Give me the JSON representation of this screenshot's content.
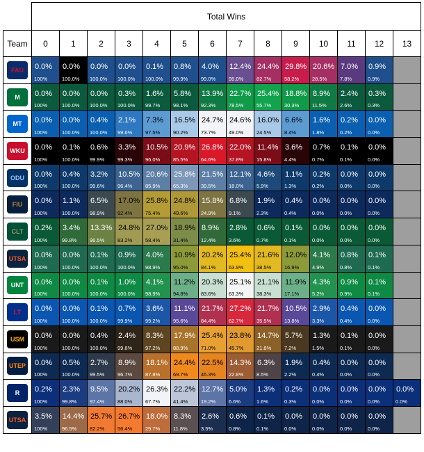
{
  "table": {
    "title": "Total Wins",
    "team_header": "Team",
    "columns": [
      "0",
      "1",
      "2",
      "3",
      "4",
      "5",
      "6",
      "7",
      "8",
      "9",
      "10",
      "11",
      "12",
      "13"
    ]
  },
  "teams": [
    {
      "logo_text": "FAU",
      "logo_bg": "#0b2c6b",
      "logo_fg": "#c8102e",
      "pct": [
        "0.0%",
        "0.0%",
        "0.0%",
        "0.0%",
        "0.1%",
        "0.8%",
        "4.0%",
        "12.4%",
        "24.4%",
        "29.8%",
        "20.6%",
        "7.0%",
        "0.9%"
      ],
      "cum": [
        "100%",
        "100.0%",
        "100.0%",
        "100.0%",
        "100.0%",
        "99.9%",
        "99.0%",
        "95.0%",
        "82.7%",
        "58.2%",
        "28.5%",
        "7.8%",
        "0.9%"
      ],
      "bg": [
        "#1f4f8c",
        "#000000",
        "#1f4f8c",
        "#1f4f8c",
        "#1f4f8c",
        "#1f4f8c",
        "#1f4f8c",
        "#6a4f90",
        "#a52f62",
        "#c81d4c",
        "#a52f62",
        "#5a3a7e",
        "#1f4f8c"
      ],
      "fg": [
        "#fff",
        "#fff",
        "#fff",
        "#fff",
        "#fff",
        "#fff",
        "#fff",
        "#fff",
        "#fff",
        "#fff",
        "#fff",
        "#fff",
        "#fff"
      ]
    },
    {
      "logo_text": "M",
      "logo_bg": "#00703c",
      "logo_fg": "#fff",
      "pct": [
        "0.0%",
        "0.0%",
        "0.0%",
        "0.3%",
        "1.6%",
        "5.8%",
        "13.9%",
        "22.7%",
        "25.4%",
        "18.8%",
        "8.9%",
        "2.4%",
        "0.3%"
      ],
      "cum": [
        "100%",
        "100.0%",
        "100.0%",
        "100.0%",
        "99.7%",
        "98.1%",
        "92.3%",
        "78.5%",
        "55.7%",
        "30.3%",
        "11.5%",
        "2.6%",
        "0.3%"
      ],
      "bg": [
        "#0b5a3e",
        "#0b5a3e",
        "#0b5a3e",
        "#0b5a3e",
        "#0b5a3e",
        "#0b5a3e",
        "#0f7a44",
        "#119a4a",
        "#12a34d",
        "#119a4a",
        "#0f7a44",
        "#0b5a3e",
        "#0b5a3e"
      ],
      "fg": [
        "#fff",
        "#fff",
        "#fff",
        "#fff",
        "#fff",
        "#fff",
        "#fff",
        "#fff",
        "#fff",
        "#fff",
        "#fff",
        "#fff",
        "#fff"
      ]
    },
    {
      "logo_text": "MT",
      "logo_bg": "#0066cc",
      "logo_fg": "#fff",
      "pct": [
        "0.0%",
        "0.0%",
        "0.4%",
        "2.1%",
        "7.3%",
        "16.5%",
        "24.7%",
        "24.6%",
        "16.0%",
        "6.6%",
        "1.6%",
        "0.2%",
        "0.0%"
      ],
      "cum": [
        "100%",
        "100.0%",
        "100.0%",
        "99.6%",
        "97.5%",
        "90.2%",
        "73.7%",
        "49.0%",
        "24.5%",
        "8.4%",
        "1.8%",
        "0.2%",
        "0.0%"
      ],
      "bg": [
        "#0a5fb0",
        "#0a5fb0",
        "#0a5fb0",
        "#2d78c0",
        "#5d9bd3",
        "#a8c9e8",
        "#f2f4f7",
        "#f2f4f7",
        "#a8c9e8",
        "#5d9bd3",
        "#0a5fb0",
        "#0a5fb0",
        "#0a5fb0"
      ],
      "fg": [
        "#fff",
        "#fff",
        "#fff",
        "#fff",
        "#000",
        "#000",
        "#000",
        "#000",
        "#000",
        "#000",
        "#fff",
        "#fff",
        "#fff"
      ]
    },
    {
      "logo_text": "WKU",
      "logo_bg": "#c8102e",
      "logo_fg": "#fff",
      "pct": [
        "0.0%",
        "0.1%",
        "0.6%",
        "3.3%",
        "10.5%",
        "20.9%",
        "26.8%",
        "22.0%",
        "11.4%",
        "3.6%",
        "0.7%",
        "0.1%",
        "0.0%"
      ],
      "cum": [
        "100%",
        "100.0%",
        "99.9%",
        "99.3%",
        "96.0%",
        "85.5%",
        "64.6%",
        "37.8%",
        "15.8%",
        "4.4%",
        "0.7%",
        "0.1%",
        "0.0%"
      ],
      "bg": [
        "#000000",
        "#000000",
        "#000000",
        "#2a0508",
        "#7a0d18",
        "#b51423",
        "#d9192a",
        "#b51423",
        "#7a0d18",
        "#2a0508",
        "#000000",
        "#000000",
        "#000000"
      ],
      "fg": [
        "#fff",
        "#fff",
        "#fff",
        "#fff",
        "#fff",
        "#fff",
        "#fff",
        "#fff",
        "#fff",
        "#fff",
        "#fff",
        "#fff",
        "#fff"
      ]
    },
    {
      "logo_text": "ODU",
      "logo_bg": "#003366",
      "logo_fg": "#a0c4ff",
      "pct": [
        "0.0%",
        "0.4%",
        "3.2%",
        "10.5%",
        "20.6%",
        "25.8%",
        "21.5%",
        "12.1%",
        "4.6%",
        "1.1%",
        "0.2%",
        "0.0%",
        "0.0%"
      ],
      "cum": [
        "100%",
        "100.0%",
        "99.6%",
        "96.4%",
        "85.9%",
        "65.3%",
        "39.5%",
        "18.0%",
        "5.9%",
        "1.3%",
        "0.2%",
        "0.0%",
        "0.0%"
      ],
      "bg": [
        "#0e3a6b",
        "#0e3a6b",
        "#1d4a7a",
        "#3d6490",
        "#5d7fa6",
        "#7c97b8",
        "#5d7fa6",
        "#3d6490",
        "#1d4a7a",
        "#0e3a6b",
        "#0e3a6b",
        "#0e3a6b",
        "#0e3a6b"
      ],
      "fg": [
        "#fff",
        "#fff",
        "#fff",
        "#fff",
        "#fff",
        "#fff",
        "#fff",
        "#fff",
        "#fff",
        "#fff",
        "#fff",
        "#fff",
        "#fff"
      ]
    },
    {
      "logo_text": "FIU",
      "logo_bg": "#081e3f",
      "logo_fg": "#b6862c",
      "pct": [
        "0.0%",
        "1.1%",
        "6.5%",
        "17.0%",
        "25.8%",
        "24.8%",
        "15.8%",
        "6.8%",
        "1.9%",
        "0.4%",
        "0.0%",
        "0.0%",
        "0.0%"
      ],
      "cum": [
        "100%",
        "100.0%",
        "98.9%",
        "92.4%",
        "75.4%",
        "49.6%",
        "24.9%",
        "9.1%",
        "2.3%",
        "0.4%",
        "0.0%",
        "0.0%",
        "0.0%"
      ],
      "bg": [
        "#0c2a5c",
        "#0c2a5c",
        "#3c4a50",
        "#7d7442",
        "#b39c35",
        "#ae9837",
        "#7d7442",
        "#3c4a50",
        "#0c2a5c",
        "#0c2a5c",
        "#0c2a5c",
        "#0c2a5c",
        "#0c2a5c"
      ],
      "fg": [
        "#fff",
        "#fff",
        "#fff",
        "#000",
        "#000",
        "#000",
        "#fff",
        "#fff",
        "#fff",
        "#fff",
        "#fff",
        "#fff",
        "#fff"
      ]
    },
    {
      "logo_text": "CLT",
      "logo_bg": "#005035",
      "logo_fg": "#a49665",
      "pct": [
        "0.2%",
        "3.4%",
        "13.3%",
        "24.8%",
        "27.0%",
        "18.9%",
        "8.9%",
        "2.8%",
        "0.6%",
        "0.1%",
        "0.0%",
        "0.0%",
        "0.0%"
      ],
      "cum": [
        "100%",
        "99.8%",
        "96.5%",
        "83.2%",
        "58.4%",
        "31.4%",
        "12.4%",
        "3.6%",
        "0.7%",
        "0.1%",
        "0.0%",
        "0.0%",
        "0.0%"
      ],
      "bg": [
        "#0b5a36",
        "#2f6a38",
        "#6c8244",
        "#a09a52",
        "#a89f55",
        "#7e8c49",
        "#2f6a38",
        "#0b5a36",
        "#0b5a36",
        "#0b5a36",
        "#0b5a36",
        "#0b5a36",
        "#0b5a36"
      ],
      "fg": [
        "#fff",
        "#fff",
        "#fff",
        "#000",
        "#000",
        "#000",
        "#fff",
        "#fff",
        "#fff",
        "#fff",
        "#fff",
        "#fff",
        "#fff"
      ]
    },
    {
      "logo_text": "UTSA",
      "logo_bg": "#0c2340",
      "logo_fg": "#f15a22",
      "pct": [
        "0.0%",
        "0.0%",
        "0.1%",
        "0.9%",
        "4.0%",
        "10.9%",
        "20.2%",
        "25.4%",
        "21.6%",
        "12.0%",
        "4.1%",
        "0.8%",
        "0.1%"
      ],
      "cum": [
        "100%",
        "100.0%",
        "100.0%",
        "100.0%",
        "98.9%",
        "95.0%",
        "84.1%",
        "63.9%",
        "38.5%",
        "16.9%",
        "4.9%",
        "0.8%",
        "0.1%"
      ],
      "bg": [
        "#1f6b52",
        "#1f6b52",
        "#1f6b52",
        "#1f6b52",
        "#2a7a4c",
        "#8c9a3a",
        "#e3b922",
        "#f2c010",
        "#e3b922",
        "#8c9a3a",
        "#2a7a4c",
        "#1f6b52",
        "#1f6b52"
      ],
      "fg": [
        "#fff",
        "#fff",
        "#fff",
        "#fff",
        "#fff",
        "#000",
        "#000",
        "#000",
        "#000",
        "#000",
        "#fff",
        "#fff",
        "#fff"
      ]
    },
    {
      "logo_text": "UNT",
      "logo_bg": "#00853e",
      "logo_fg": "#fff",
      "pct": [
        "0.0%",
        "0.0%",
        "0.1%",
        "1.0%",
        "4.1%",
        "11.2%",
        "20.3%",
        "25.1%",
        "21.1%",
        "11.9%",
        "4.3%",
        "0.9%",
        "0.1%"
      ],
      "cum": [
        "100%",
        "100.0%",
        "100.0%",
        "100.0%",
        "98.9%",
        "94.8%",
        "83.6%",
        "63.3%",
        "38.3%",
        "17.1%",
        "5.2%",
        "0.9%",
        "0.1%"
      ],
      "bg": [
        "#0e8a44",
        "#0e8a44",
        "#0e8a44",
        "#0e8a44",
        "#22924f",
        "#6cb08a",
        "#c8dfd1",
        "#f2f5f3",
        "#c8dfd1",
        "#6cb08a",
        "#22924f",
        "#0e8a44",
        "#0e8a44"
      ],
      "fg": [
        "#fff",
        "#fff",
        "#fff",
        "#fff",
        "#fff",
        "#000",
        "#000",
        "#000",
        "#000",
        "#000",
        "#fff",
        "#fff",
        "#fff"
      ]
    },
    {
      "logo_text": "LT",
      "logo_bg": "#002f8b",
      "logo_fg": "#e31937",
      "pct": [
        "0.0%",
        "0.0%",
        "0.1%",
        "0.7%",
        "3.6%",
        "11.1%",
        "21.7%",
        "27.2%",
        "21.7%",
        "10.5%",
        "2.9%",
        "0.4%",
        "0.0%"
      ],
      "cum": [
        "100%",
        "100.0%",
        "100.0%",
        "99.9%",
        "99.2%",
        "95.6%",
        "84.4%",
        "62.7%",
        "35.5%",
        "13.8%",
        "3.3%",
        "0.4%",
        "0.0%"
      ],
      "bg": [
        "#0a56b0",
        "#0a56b0",
        "#0a56b0",
        "#0a56b0",
        "#1c56a8",
        "#5a4898",
        "#b03050",
        "#d8283c",
        "#b03050",
        "#5a4898",
        "#1c56a8",
        "#0a56b0",
        "#0a56b0"
      ],
      "fg": [
        "#fff",
        "#fff",
        "#fff",
        "#fff",
        "#fff",
        "#fff",
        "#fff",
        "#fff",
        "#fff",
        "#fff",
        "#fff",
        "#fff",
        "#fff"
      ]
    },
    {
      "logo_text": "USM",
      "logo_bg": "#000000",
      "logo_fg": "#ffab00",
      "pct": [
        "0.0%",
        "0.0%",
        "0.4%",
        "2.4%",
        "8.3%",
        "17.9%",
        "25.4%",
        "23.8%",
        "14.7%",
        "5.7%",
        "1.3%",
        "0.1%",
        "0.0%"
      ],
      "cum": [
        "100%",
        "100.0%",
        "100.0%",
        "99.6%",
        "97.2%",
        "88.9%",
        "71.0%",
        "45.7%",
        "21.8%",
        "7.2%",
        "1.5%",
        "0.1%",
        "0.0%"
      ],
      "bg": [
        "#1a1a1a",
        "#1a1a1a",
        "#1a1a1a",
        "#2e2418",
        "#5c4520",
        "#a8742c",
        "#e8a032",
        "#e09a30",
        "#8c6128",
        "#4a3820",
        "#1a1a1a",
        "#1a1a1a",
        "#1a1a1a"
      ],
      "fg": [
        "#fff",
        "#fff",
        "#fff",
        "#fff",
        "#fff",
        "#fff",
        "#000",
        "#000",
        "#fff",
        "#fff",
        "#fff",
        "#fff",
        "#fff"
      ]
    },
    {
      "logo_text": "UTEP",
      "logo_bg": "#041e42",
      "logo_fg": "#ff8200",
      "pct": [
        "0.0%",
        "0.5%",
        "2.7%",
        "8.9%",
        "18.1%",
        "24.4%",
        "22.5%",
        "14.3%",
        "6.3%",
        "1.9%",
        "0.4%",
        "0.0%",
        "0.0%"
      ],
      "cum": [
        "100%",
        "100.0%",
        "99.5%",
        "96.7%",
        "87.8%",
        "69.7%",
        "45.3%",
        "22.8%",
        "8.5%",
        "2.2%",
        "0.4%",
        "0.0%",
        "0.0%"
      ],
      "bg": [
        "#0c2a52",
        "#0c2a52",
        "#2e3a4c",
        "#5c4a40",
        "#b8702c",
        "#f08a1c",
        "#e68420",
        "#9c5c34",
        "#4e4448",
        "#0c2a52",
        "#0c2a52",
        "#0c2a52",
        "#0c2a52"
      ],
      "fg": [
        "#fff",
        "#fff",
        "#fff",
        "#fff",
        "#fff",
        "#000",
        "#000",
        "#fff",
        "#fff",
        "#fff",
        "#fff",
        "#fff",
        "#fff"
      ]
    },
    {
      "logo_text": "R",
      "logo_bg": "#002469",
      "logo_fg": "#fff",
      "pct": [
        "0.2%",
        "2.3%",
        "9.5%",
        "20.2%",
        "26.3%",
        "22.2%",
        "12.7%",
        "5.0%",
        "1.3%",
        "0.2%",
        "0.0%",
        "0.0%",
        "0.0%",
        "0.0%"
      ],
      "cum": [
        "100%",
        "99.8%",
        "97.4%",
        "88.0%",
        "67.7%",
        "41.4%",
        "19.2%",
        "6.6%",
        "1.6%",
        "0.3%",
        "0.0%",
        "0.0%",
        "0.0%",
        "0.0%"
      ],
      "bg": [
        "#0c2f7a",
        "#1c3c82",
        "#5c74a6",
        "#a8b6cf",
        "#f2f3f6",
        "#bcc6d8",
        "#5c74a6",
        "#1c3c82",
        "#0c2f7a",
        "#0c2f7a",
        "#0c2f7a",
        "#0c2f7a",
        "#0c2f7a",
        "#0c2f7a"
      ],
      "fg": [
        "#fff",
        "#fff",
        "#fff",
        "#000",
        "#000",
        "#000",
        "#fff",
        "#fff",
        "#fff",
        "#fff",
        "#fff",
        "#fff",
        "#fff",
        "#fff"
      ]
    },
    {
      "logo_text": "UTSA",
      "logo_bg": "#0c2340",
      "logo_fg": "#f15a22",
      "pct": [
        "3.5%",
        "14.4%",
        "25.7%",
        "26.7%",
        "18.0%",
        "8.3%",
        "2.6%",
        "0.6%",
        "0.1%",
        "0.0%",
        "0.0%",
        "0.0%",
        "0.0%"
      ],
      "cum": [
        "100%",
        "96.5%",
        "82.2%",
        "56.4%",
        "29.7%",
        "11.8%",
        "3.5%",
        "0.8%",
        "0.1%",
        "0.0%",
        "0.0%",
        "0.0%",
        "0.0%"
      ],
      "bg": [
        "#34405a",
        "#9c6a48",
        "#f07a32",
        "#f47a30",
        "#bd6c3c",
        "#5a5052",
        "#1c2e50",
        "#0e2448",
        "#0e2448",
        "#0e2448",
        "#0e2448",
        "#0e2448",
        "#0e2448"
      ],
      "fg": [
        "#fff",
        "#fff",
        "#000",
        "#000",
        "#fff",
        "#fff",
        "#fff",
        "#fff",
        "#fff",
        "#fff",
        "#fff",
        "#fff",
        "#fff"
      ]
    }
  ]
}
